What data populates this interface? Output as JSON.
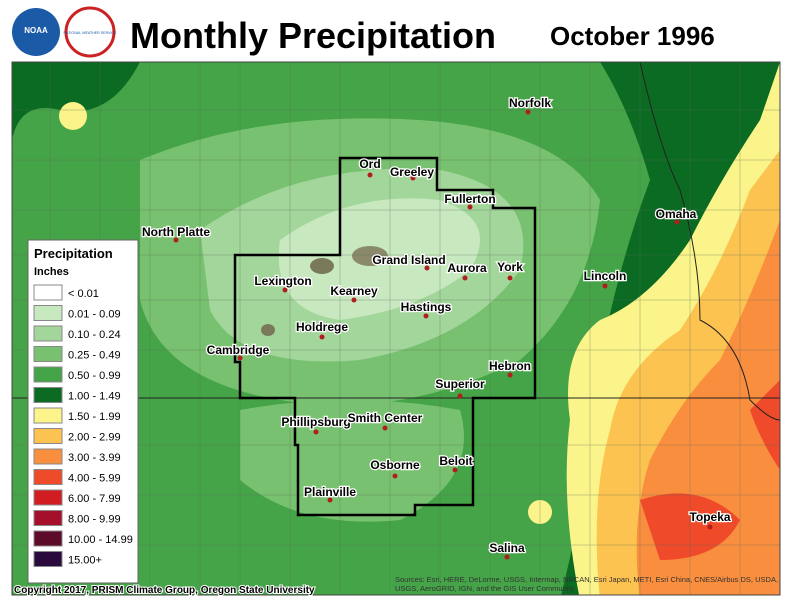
{
  "header": {
    "title": "Monthly Precipitation",
    "date": "October 1996",
    "logo_noaa": "NOAA",
    "logo_nws": "NATIONAL WEATHER SERVICE"
  },
  "legend": {
    "title": "Precipitation",
    "units": "Inches",
    "items": [
      {
        "label": "< 0.01",
        "color": "#ffffff"
      },
      {
        "label": "0.01 - 0.09",
        "color": "#c8e8c0"
      },
      {
        "label": "0.10 - 0.24",
        "color": "#a3d69a"
      },
      {
        "label": "0.25 - 0.49",
        "color": "#78c170"
      },
      {
        "label": "0.50 - 0.99",
        "color": "#45a447"
      },
      {
        "label": "1.00 - 1.49",
        "color": "#0b6b22"
      },
      {
        "label": "1.50 - 1.99",
        "color": "#fbf48a"
      },
      {
        "label": "2.00 - 2.99",
        "color": "#fdc350"
      },
      {
        "label": "3.00 - 3.99",
        "color": "#f98e3e"
      },
      {
        "label": "4.00 - 5.99",
        "color": "#ef4a2a"
      },
      {
        "label": "6.00 - 7.99",
        "color": "#d11c22"
      },
      {
        "label": "8.00 - 9.99",
        "color": "#a60f2c"
      },
      {
        "label": "10.00 - 14.99",
        "color": "#5e0a2a"
      },
      {
        "label": "15.00+",
        "color": "#2a0a3c"
      }
    ]
  },
  "cities": [
    "Norfolk",
    "Ord",
    "Greeley",
    "Fullerton",
    "North Platte",
    "Omaha",
    "Grand Island",
    "Lexington",
    "Kearney",
    "Aurora",
    "York",
    "Lincoln",
    "Hastings",
    "Holdrege",
    "Cambridge",
    "Hebron",
    "Superior",
    "Phillipsburg",
    "Smith Center",
    "Beloit",
    "Osborne",
    "Plainville",
    "Topeka",
    "Salina"
  ],
  "footer": {
    "copyright": "Copyright 2017, PRISM Climate Group, Oregon State University",
    "attribution": "Sources: Esri, HERE, DeLorme, USGS, Intermap, NRCAN, Esri Japan, METI, Esri China, CNES/Airbus DS, USDA, USGS, AeroGRID, IGN, and the GIS User Community"
  }
}
